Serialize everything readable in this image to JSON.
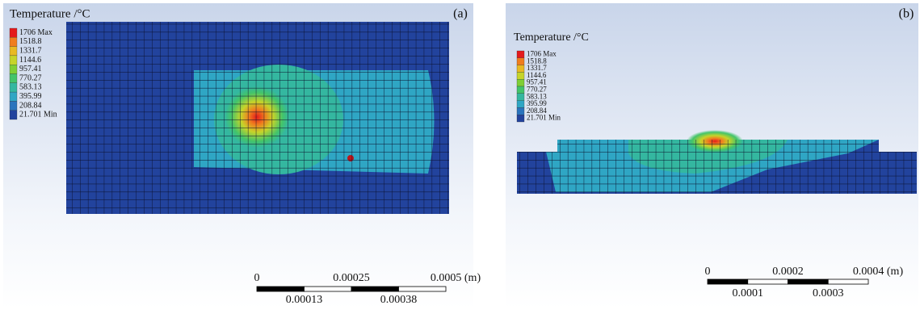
{
  "panels": [
    {
      "label": "(a)",
      "legend_title": "Temperature /°C",
      "legend": [
        {
          "label": "1706 Max",
          "color": "#e41a1c"
        },
        {
          "label": "1518.8",
          "color": "#f07d1e"
        },
        {
          "label": "1331.7",
          "color": "#e8b923"
        },
        {
          "label": "1144.6",
          "color": "#c6d42a"
        },
        {
          "label": "957.41",
          "color": "#7fcf35"
        },
        {
          "label": "770.27",
          "color": "#43c46a"
        },
        {
          "label": "583.13",
          "color": "#34b7a0"
        },
        {
          "label": "395.99",
          "color": "#2fa6c4"
        },
        {
          "label": "208.84",
          "color": "#2a74bd"
        },
        {
          "label": "21.701 Min",
          "color": "#22439d"
        }
      ],
      "scale_top": [
        "0",
        "0.00025",
        "0.0005 (m)"
      ],
      "scale_bottom": [
        "0.00013",
        "0.00038"
      ]
    },
    {
      "label": "(b)",
      "legend_title": "Temperature /°C",
      "legend": [
        {
          "label": "1706 Max",
          "color": "#e41a1c"
        },
        {
          "label": "1518.8",
          "color": "#f07d1e"
        },
        {
          "label": "1331.7",
          "color": "#e8b923"
        },
        {
          "label": "1144.6",
          "color": "#c6d42a"
        },
        {
          "label": "957.41",
          "color": "#7fcf35"
        },
        {
          "label": "770.27",
          "color": "#43c46a"
        },
        {
          "label": "583.13",
          "color": "#34b7a0"
        },
        {
          "label": "395.99",
          "color": "#2fa6c4"
        },
        {
          "label": "208.84",
          "color": "#2a74bd"
        },
        {
          "label": "21.701 Min",
          "color": "#22439d"
        }
      ],
      "scale_top": [
        "0",
        "0.0002",
        "0.0004 (m)"
      ],
      "scale_bottom": [
        "0.0001",
        "0.0003"
      ]
    }
  ]
}
